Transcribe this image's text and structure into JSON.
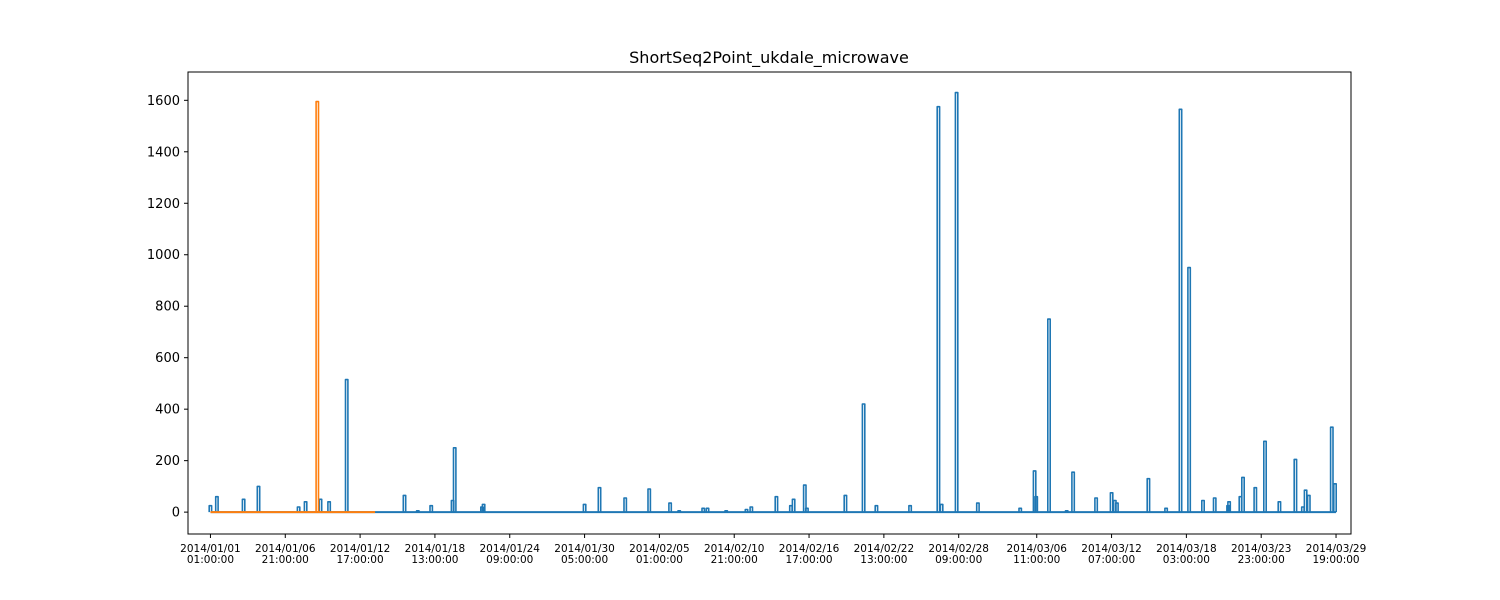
{
  "chart_data": {
    "type": "line",
    "title": "ShortSeq2Point_ukdale_microwave",
    "xlabel": "",
    "ylabel": "",
    "ylim": [
      -85,
      1710
    ],
    "xlim": [
      "2013-12-30 07:00:00",
      "2014-03-30 23:00:00"
    ],
    "grid": false,
    "y_ticks": [
      0,
      200,
      400,
      600,
      800,
      1000,
      1200,
      1400,
      1600
    ],
    "x_ticks": [
      {
        "date": "2014/01/01",
        "time": "01:00:00"
      },
      {
        "date": "2014/01/06",
        "time": "21:00:00"
      },
      {
        "date": "2014/01/12",
        "time": "17:00:00"
      },
      {
        "date": "2014/01/18",
        "time": "13:00:00"
      },
      {
        "date": "2014/01/24",
        "time": "09:00:00"
      },
      {
        "date": "2014/01/30",
        "time": "05:00:00"
      },
      {
        "date": "2014/02/05",
        "time": "01:00:00"
      },
      {
        "date": "2014/02/10",
        "time": "21:00:00"
      },
      {
        "date": "2014/02/16",
        "time": "17:00:00"
      },
      {
        "date": "2014/02/22",
        "time": "13:00:00"
      },
      {
        "date": "2014/02/28",
        "time": "09:00:00"
      },
      {
        "date": "2014/03/06",
        "time": "11:00:00"
      },
      {
        "date": "2014/03/12",
        "time": "07:00:00"
      },
      {
        "date": "2014/03/18",
        "time": "03:00:00"
      },
      {
        "date": "2014/03/23",
        "time": "23:00:00"
      },
      {
        "date": "2014/03/29",
        "time": "19:00:00"
      }
    ],
    "series": [
      {
        "color": "#1f77b4",
        "start": "2014-01-01 01:00:00",
        "end": "2014-03-29 19:00:00",
        "baseline": 0,
        "spikes": [
          [
            "2014-01-01 01:00:00",
            25
          ],
          [
            "2014-01-01 13:00:00",
            60
          ],
          [
            "2014-01-03 15:00:00",
            50
          ],
          [
            "2014-01-04 19:00:00",
            100
          ],
          [
            "2014-01-07 22:00:00",
            20
          ],
          [
            "2014-01-08 11:00:00",
            40
          ],
          [
            "2014-01-09 15:00:00",
            50
          ],
          [
            "2014-01-10 07:00:00",
            40
          ],
          [
            "2014-01-11 16:00:00",
            515
          ],
          [
            "2014-01-16 04:00:00",
            65
          ],
          [
            "2014-01-17 05:00:00",
            5
          ],
          [
            "2014-01-18 06:00:00",
            25
          ],
          [
            "2014-01-19 22:00:00",
            45
          ],
          [
            "2014-01-20 02:00:00",
            250
          ],
          [
            "2014-01-22 05:00:00",
            20
          ],
          [
            "2014-01-22 08:00:00",
            30
          ],
          [
            "2014-01-30 05:00:00",
            30
          ],
          [
            "2014-01-31 09:00:00",
            95
          ],
          [
            "2014-02-02 09:00:00",
            55
          ],
          [
            "2014-02-04 06:00:00",
            90
          ],
          [
            "2014-02-05 21:00:00",
            35
          ],
          [
            "2014-02-06 14:00:00",
            5
          ],
          [
            "2014-02-08 11:00:00",
            15
          ],
          [
            "2014-02-08 19:00:00",
            15
          ],
          [
            "2014-02-10 06:00:00",
            5
          ],
          [
            "2014-02-11 20:00:00",
            10
          ],
          [
            "2014-02-12 05:00:00",
            20
          ],
          [
            "2014-02-14 04:00:00",
            60
          ],
          [
            "2014-02-15 07:00:00",
            25
          ],
          [
            "2014-02-15 12:00:00",
            50
          ],
          [
            "2014-02-16 09:00:00",
            105
          ],
          [
            "2014-02-16 13:00:00",
            15
          ],
          [
            "2014-02-19 13:00:00",
            65
          ],
          [
            "2014-02-20 23:00:00",
            420
          ],
          [
            "2014-02-21 23:00:00",
            25
          ],
          [
            "2014-02-24 14:00:00",
            25
          ],
          [
            "2014-02-26 19:00:00",
            1575
          ],
          [
            "2014-02-27 01:00:00",
            30
          ],
          [
            "2014-02-28 05:00:00",
            1630
          ],
          [
            "2014-03-01 21:00:00",
            35
          ],
          [
            "2014-03-05 04:00:00",
            15
          ],
          [
            "2014-03-06 07:00:00",
            160
          ],
          [
            "2014-03-06 10:00:00",
            60
          ],
          [
            "2014-03-07 10:00:00",
            750
          ],
          [
            "2014-03-08 19:00:00",
            5
          ],
          [
            "2014-03-09 07:00:00",
            155
          ],
          [
            "2014-03-11 02:00:00",
            55
          ],
          [
            "2014-03-12 07:00:00",
            75
          ],
          [
            "2014-03-12 13:00:00",
            45
          ],
          [
            "2014-03-12 17:00:00",
            35
          ],
          [
            "2014-03-15 04:00:00",
            130
          ],
          [
            "2014-03-16 13:00:00",
            15
          ],
          [
            "2014-03-17 16:00:00",
            1565
          ],
          [
            "2014-03-18 08:00:00",
            950
          ],
          [
            "2014-03-19 10:00:00",
            45
          ],
          [
            "2014-03-20 08:00:00",
            55
          ],
          [
            "2014-03-21 09:00:00",
            25
          ],
          [
            "2014-03-21 11:00:00",
            40
          ],
          [
            "2014-03-22 08:00:00",
            60
          ],
          [
            "2014-03-22 13:00:00",
            135
          ],
          [
            "2014-03-23 12:00:00",
            95
          ],
          [
            "2014-03-24 06:00:00",
            275
          ],
          [
            "2014-03-25 09:00:00",
            40
          ],
          [
            "2014-03-26 15:00:00",
            205
          ],
          [
            "2014-03-27 05:00:00",
            20
          ],
          [
            "2014-03-27 10:00:00",
            85
          ],
          [
            "2014-03-27 16:00:00",
            65
          ],
          [
            "2014-03-29 11:00:00",
            330
          ],
          [
            "2014-03-29 17:00:00",
            110
          ]
        ]
      },
      {
        "color": "#ff7f0e",
        "start": "2014-01-01 01:00:00",
        "end": "2014-01-13 21:00:00",
        "baseline": 0,
        "spikes": [
          [
            "2014-01-09 09:00:00",
            1595
          ]
        ]
      }
    ]
  }
}
